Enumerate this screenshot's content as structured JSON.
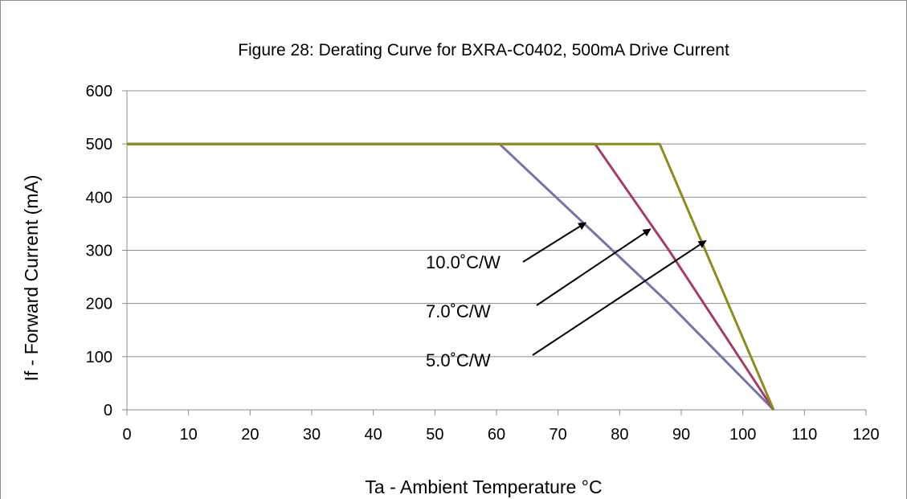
{
  "chart_data": {
    "type": "line",
    "title": "Figure 28:  Derating Curve for BXRA-C0402, 500mA Drive Current",
    "xlabel": "Ta - Ambient Temperature °C",
    "ylabel": "If - Forward Current (mA)",
    "xlim": [
      0,
      120
    ],
    "ylim": [
      0,
      600
    ],
    "x_ticks": [
      "0",
      "10",
      "20",
      "30",
      "40",
      "50",
      "60",
      "70",
      "80",
      "90",
      "100",
      "110",
      "120"
    ],
    "y_ticks": [
      "0",
      "100",
      "200",
      "300",
      "400",
      "500",
      "600"
    ],
    "grid": "horizontal",
    "legend": "none",
    "series": [
      {
        "color": "#7474a8",
        "x": [
          0,
          60.5,
          88,
          105
        ],
        "y": [
          500,
          500,
          200,
          0
        ]
      },
      {
        "color": "#a33d6b",
        "x": [
          0,
          76,
          88,
          105
        ],
        "y": [
          500,
          500,
          300,
          0
        ]
      },
      {
        "color": "#8c8c1f",
        "x": [
          0,
          86.5,
          105
        ],
        "y": [
          500,
          500,
          0
        ]
      }
    ],
    "annotations": [
      {
        "text": "10.0˚C/W",
        "arrow_to": [
          74.5,
          352
        ]
      },
      {
        "text": "7.0˚C/W",
        "arrow_to": [
          85,
          340
        ]
      },
      {
        "text": "5.0˚C/W",
        "arrow_to": [
          94,
          318
        ]
      }
    ]
  }
}
